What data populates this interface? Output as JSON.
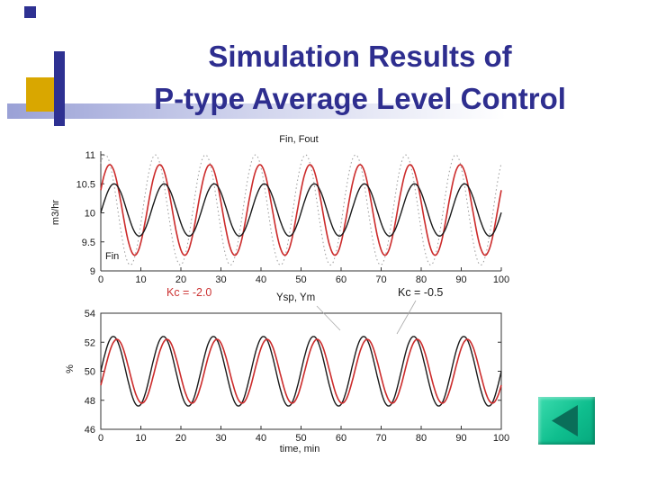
{
  "slide": {
    "title_line1": "Simulation Results of",
    "title_line2": "P-type Average Level Control",
    "title_color": "#2e2e8f"
  },
  "theme": {
    "decor_navy": "#2e3192",
    "decor_yellow": "#d9a700",
    "decor_gradient_start": "#9aa1d6",
    "nav_button_color": "#0fbe8e",
    "nav_arrow_color": "#0a6e59",
    "curve_red": "#cc2b2b",
    "curve_black": "#1a1a1a"
  },
  "annotations": {
    "kc_left": "Kc = -2.0",
    "kc_left_color": "#cc3333",
    "ysp_ym": "Ysp, Ym",
    "kc_right": "Kc = -0.5"
  },
  "chart_data": [
    {
      "type": "line",
      "title": "Fin, Fout",
      "ylabel": "m3/hr",
      "xlabel": "",
      "inner_label": "Fin",
      "xlim": [
        0,
        100
      ],
      "ylim": [
        9,
        11
      ],
      "xticks": [
        0,
        10,
        20,
        30,
        40,
        50,
        60,
        70,
        80,
        90,
        100
      ],
      "yticks": [
        9,
        9.5,
        10,
        10.5,
        11
      ],
      "waveform": "sine",
      "series": [
        {
          "name": "dotted-reference",
          "color": "#9a9a9a",
          "dash": "1.5 3",
          "width": 1,
          "mean": 10.05,
          "amplitude": 0.95,
          "period_min": 12.5,
          "phase_min": -2.0
        },
        {
          "name": "Fout",
          "color": "#cc2b2b",
          "width": 1.6,
          "mean": 10.05,
          "amplitude": 0.78,
          "period_min": 12.5,
          "phase_min": -0.9
        },
        {
          "name": "Fin",
          "color": "#1a1a1a",
          "width": 1.4,
          "mean": 10.05,
          "amplitude": 0.45,
          "period_min": 12.5,
          "phase_min": 0.2
        }
      ]
    },
    {
      "type": "line",
      "title": "",
      "ylabel": "%",
      "xlabel": "time, min",
      "xlim": [
        0,
        100
      ],
      "ylim": [
        46,
        54
      ],
      "xticks": [
        0,
        10,
        20,
        30,
        40,
        50,
        60,
        70,
        80,
        90,
        100
      ],
      "yticks": [
        46,
        48,
        50,
        52,
        54
      ],
      "box": true,
      "waveform": "sine",
      "series": [
        {
          "name": "Ysp",
          "color": "#1a1a1a",
          "width": 1.4,
          "mean": 50,
          "amplitude": 2.4,
          "period_min": 12.5,
          "phase_min": 0
        },
        {
          "name": "Ym",
          "color": "#cc2b2b",
          "width": 1.6,
          "mean": 50,
          "amplitude": 2.2,
          "period_min": 12.5,
          "phase_min": 0.9
        }
      ]
    }
  ]
}
